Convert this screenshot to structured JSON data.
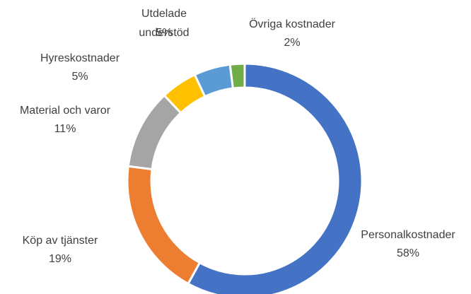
{
  "chart_data": {
    "type": "donut",
    "categories": [
      "Personalkostnader",
      "Köp av tjänster",
      "Material och varor",
      "Hyreskostnader",
      "Utdelade understöd",
      "Övriga kostnader"
    ],
    "values": [
      58,
      19,
      11,
      5,
      5,
      2
    ],
    "value_labels": [
      "58%",
      "19%",
      "11%",
      "5%",
      "5%",
      "2%"
    ],
    "colors": [
      "#4472c4",
      "#ed7d31",
      "#a5a5a5",
      "#ffc000",
      "#5b9bd5",
      "#70ad47"
    ]
  }
}
